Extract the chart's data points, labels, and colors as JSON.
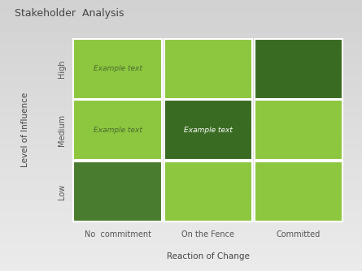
{
  "title": "Stakeholder  Analysis",
  "xlabel": "Reaction of Change",
  "ylabel": "Level of Influence",
  "x_labels": [
    "No  commitment",
    "On the Fence",
    "Committed"
  ],
  "y_labels": [
    "Low",
    "Medium",
    "High"
  ],
  "background_top": "#c8c8c8",
  "background_bottom": "#e8e8e8",
  "cell_colors": [
    [
      "#4a7c2f",
      "#8dc63f",
      "#8dc63f"
    ],
    [
      "#8dc63f",
      "#3a6b22",
      "#8dc63f"
    ],
    [
      "#8dc63f",
      "#8dc63f",
      "#3a6b22"
    ]
  ],
  "cell_texts": [
    [
      "",
      "",
      ""
    ],
    [
      "Example text",
      "Example text",
      ""
    ],
    [
      "Example text",
      "",
      ""
    ]
  ],
  "text_colors_dark": "#4a6b30",
  "text_colors_light": "#ffffff",
  "text_cell_is_dark": [
    [
      false,
      false,
      false
    ],
    [
      true,
      false,
      false
    ],
    [
      true,
      false,
      false
    ]
  ],
  "title_fontsize": 9,
  "label_fontsize": 7.5,
  "tick_fontsize": 7,
  "cell_text_fontsize": 6.5
}
